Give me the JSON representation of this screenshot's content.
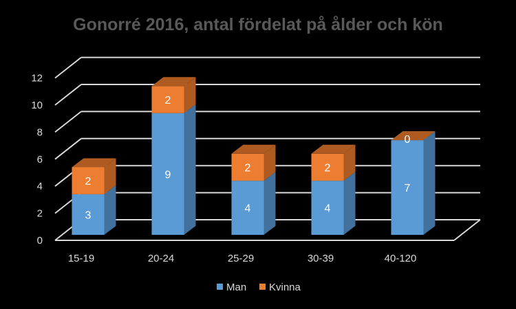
{
  "chart_data": {
    "type": "bar",
    "stacked": true,
    "style": "3d",
    "title": "Gonorré 2016, antal fördelat på ålder och kön",
    "categories": [
      "15-19",
      "20-24",
      "25-29",
      "30-39",
      "40-120"
    ],
    "series": [
      {
        "name": "Man",
        "values": [
          3,
          9,
          4,
          4,
          7
        ],
        "color": "#5b9bd5",
        "color_dark": "#41719c"
      },
      {
        "name": "Kvinna",
        "values": [
          2,
          2,
          2,
          2,
          0
        ],
        "color": "#ed7d31",
        "color_dark": "#ae5a21"
      }
    ],
    "yticks": [
      "0",
      "2",
      "4",
      "6",
      "8",
      "10",
      "12"
    ],
    "ylim": [
      0,
      12
    ],
    "ystep": 2,
    "grid": true,
    "legend_position": "bottom"
  }
}
